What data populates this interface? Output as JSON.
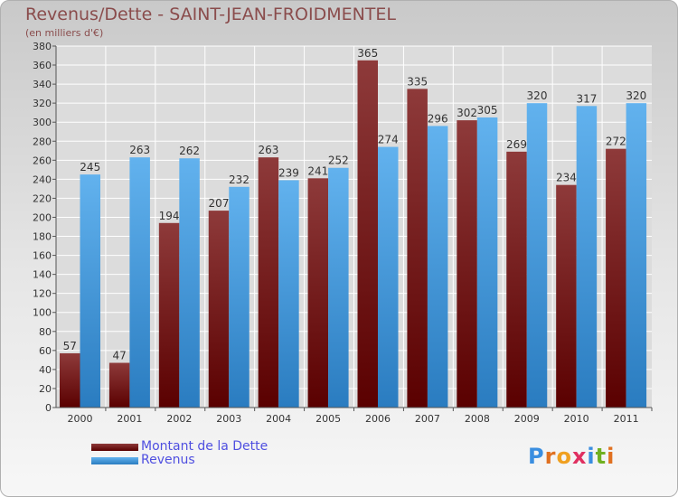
{
  "header": {
    "title": "Revenus/Dette - SAINT-JEAN-FROIDMENTEL",
    "subtitle": "(en milliers d'€)"
  },
  "legend": {
    "items": [
      {
        "label": "Montant de la Dette",
        "color": "#6a0f0f"
      },
      {
        "label": "Revenus",
        "color": "#3f9ae0"
      }
    ]
  },
  "logo": {
    "text": "Proxiti"
  },
  "chart_data": {
    "type": "bar",
    "title": "Revenus/Dette - SAINT-JEAN-FROIDMENTEL",
    "ylabel": "(en milliers d'€)",
    "xlabel": "",
    "ylim": [
      0,
      380
    ],
    "ytick_step": 20,
    "grid": true,
    "legend_position": "bottom-left",
    "categories": [
      "2000",
      "2001",
      "2002",
      "2003",
      "2004",
      "2005",
      "2006",
      "2007",
      "2008",
      "2009",
      "2010",
      "2011"
    ],
    "series": [
      {
        "name": "Montant de la Dette",
        "color": "#6a0f0f",
        "values": [
          57,
          47,
          194,
          207,
          263,
          241,
          365,
          335,
          302,
          269,
          234,
          272
        ]
      },
      {
        "name": "Revenus",
        "color": "#3f9ae0",
        "values": [
          245,
          263,
          262,
          232,
          239,
          252,
          274,
          296,
          305,
          320,
          317,
          320
        ]
      }
    ]
  }
}
